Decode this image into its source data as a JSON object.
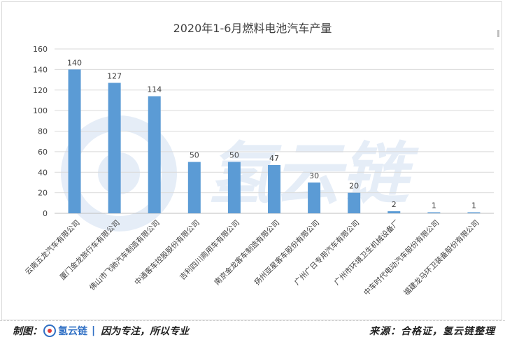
{
  "chart_data": {
    "type": "bar",
    "title": "2020年1-6月燃料电池汽车产量",
    "categories": [
      "云南五龙汽车有限公司",
      "厦门金龙旅行车有限公司",
      "佛山市飞驰汽车制造有限公司",
      "中通客车控股股份有限公司",
      "吉利四川商用车有限公司",
      "南京金龙客车制造有限公司",
      "扬州亚星客车股份有限公司",
      "广州广日专用汽车有限公司",
      "广州市环境卫生机械设备厂",
      "中车时代电动汽车股份有限公司",
      "福建龙马环卫装备股份有限公司"
    ],
    "values": [
      140,
      127,
      114,
      50,
      50,
      47,
      30,
      20,
      2,
      1,
      1
    ],
    "ylim": [
      0,
      160
    ],
    "yticks": [
      0,
      20,
      40,
      60,
      80,
      100,
      120,
      140,
      160
    ],
    "grid": true,
    "legend": "none",
    "bar_color": "#5b9bd5",
    "grid_color": "#d9d9d9"
  },
  "watermark": {
    "text": "氢云链",
    "color": "#2f6fc4"
  },
  "footer": {
    "left_prefix": "制图：",
    "logo_name": "氢云链",
    "logo_sep": "|",
    "slogan": "因为专注，所以专业",
    "right_text": "来源：合格证，氢云链整理"
  }
}
